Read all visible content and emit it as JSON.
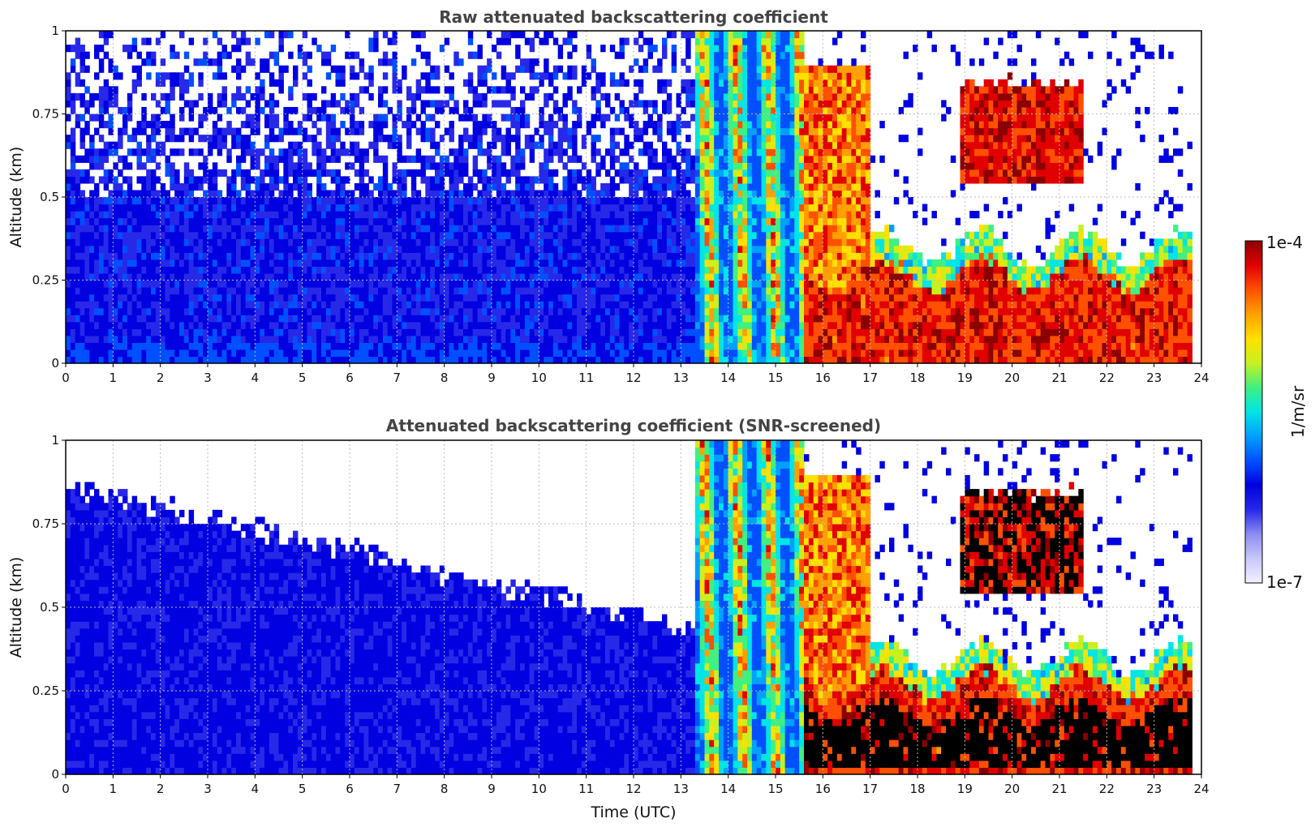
{
  "chart_data": [
    {
      "type": "heatmap",
      "title": "Raw attenuated backscattering coefficient",
      "xlabel": "",
      "ylabel": "Altitude (km)",
      "xlim": [
        0,
        24
      ],
      "ylim": [
        0,
        1
      ],
      "x_ticks": [
        "0",
        "1",
        "2",
        "3",
        "4",
        "5",
        "6",
        "7",
        "8",
        "9",
        "10",
        "11",
        "12",
        "13",
        "14",
        "15",
        "16",
        "17",
        "18",
        "19",
        "20",
        "21",
        "22",
        "23",
        "24"
      ],
      "y_ticks": [
        "0",
        "0.25",
        "0.5",
        "0.75",
        "1"
      ],
      "grid": true,
      "x_unit": "hours UTC",
      "y_unit": "km",
      "value_unit": "1/m/sr",
      "color_scale": "log",
      "regimes": [
        {
          "x": [
            0,
            13.3
          ],
          "description": "noisy low backscatter (blue) up to 1 km, sparse white speckle above 0.5 km"
        },
        {
          "x": [
            13.3,
            15.6
          ],
          "description": "vertical streaks of green/yellow/orange reaching 1 km"
        },
        {
          "x": [
            15.6,
            24
          ],
          "description": "strong backscatter layer (red/dark red) below ~0.3 km, cloud features near 0.6-0.85 km between 19 h and 21 h"
        }
      ]
    },
    {
      "type": "heatmap",
      "title": "Attenuated backscattering coefficient (SNR-screened)",
      "xlabel": "Time (UTC)",
      "ylabel": "Altitude (km)",
      "xlim": [
        0,
        24
      ],
      "ylim": [
        0,
        1
      ],
      "x_ticks": [
        "0",
        "1",
        "2",
        "3",
        "4",
        "5",
        "6",
        "7",
        "8",
        "9",
        "10",
        "11",
        "12",
        "13",
        "14",
        "15",
        "16",
        "17",
        "18",
        "19",
        "20",
        "21",
        "22",
        "23",
        "24"
      ],
      "y_ticks": [
        "0",
        "0.25",
        "0.5",
        "0.75",
        "1"
      ],
      "grid": true,
      "x_unit": "hours UTC",
      "y_unit": "km",
      "value_unit": "1/m/sr",
      "color_scale": "log",
      "regimes": [
        {
          "x": [
            0,
            13.3
          ],
          "description": "blue signal with screened (white) region above a top that descends from ~0.85 km to ~0.4 km"
        },
        {
          "x": [
            13.3,
            15.6
          ],
          "description": "vertical streaks of green/yellow/orange reaching 1 km"
        },
        {
          "x": [
            15.6,
            24
          ],
          "description": "strong layer below ~0.3 km with saturated (black) core, clouds near 0.6-0.85 km"
        }
      ]
    }
  ],
  "colorbar": {
    "label": "1/m/sr",
    "max_label": "1e-4",
    "min_label": "1e-7",
    "colors": [
      "#f0f0ff",
      "#c8c8f8",
      "#8c8cf2",
      "#2828e8",
      "#0000e0",
      "#0050ff",
      "#00a0ff",
      "#00e5e5",
      "#40f080",
      "#c8f020",
      "#ffe000",
      "#ffa000",
      "#ff5000",
      "#e00000",
      "#8b0000"
    ]
  }
}
